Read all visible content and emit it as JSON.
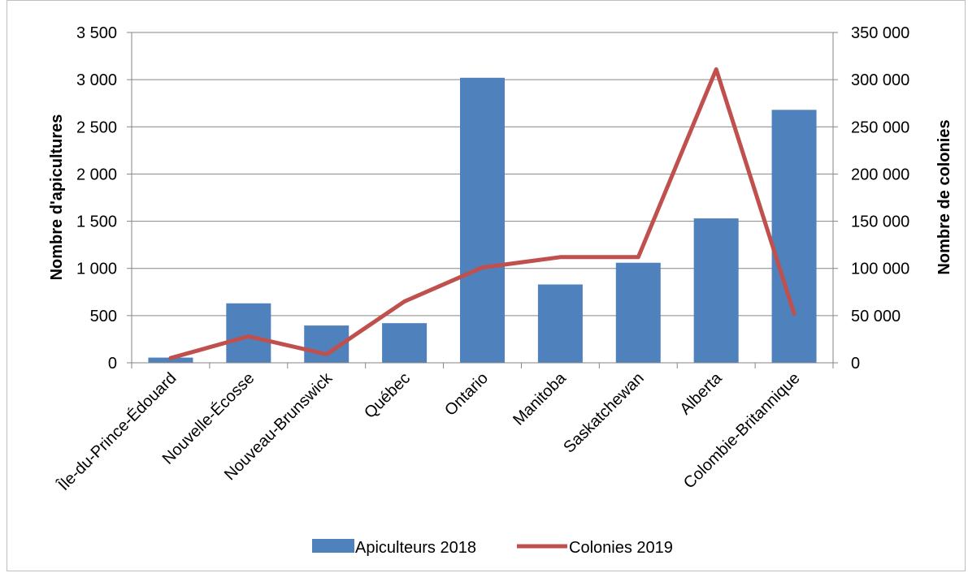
{
  "chart_data": {
    "type": "bar",
    "categories": [
      "Île-du-Prince-Édouard",
      "Nouvelle-Écosse",
      "Nouveau-Brunswick",
      "Québec",
      "Ontario",
      "Manitoba",
      "Saskatchewan",
      "Alberta",
      "Colombie-Britannique"
    ],
    "series": [
      {
        "name": "Apiculteurs 2018",
        "type": "bar",
        "axis": "left",
        "color": "#4F81BD",
        "values": [
          55,
          630,
          395,
          420,
          3020,
          830,
          1060,
          1530,
          2680
        ]
      },
      {
        "name": "Colonies 2019",
        "type": "line",
        "axis": "right",
        "color": "#C0504D",
        "values": [
          5000,
          28000,
          9000,
          65000,
          101000,
          112000,
          112000,
          311000,
          52000
        ]
      }
    ],
    "ylabel": "Nombre d'apicultures",
    "y2label": "Nombre de colonies",
    "ylim": [
      0,
      3500
    ],
    "y2lim": [
      0,
      350000
    ],
    "yticks": [
      "0",
      "500",
      "1 000",
      "1 500",
      "2 000",
      "2 500",
      "3 000",
      "3 500"
    ],
    "y2ticks": [
      "0",
      "50 000",
      "100 000",
      "150 000",
      "200 000",
      "250 000",
      "300 000",
      "350 000"
    ],
    "grid": true,
    "legend": "bottom"
  }
}
